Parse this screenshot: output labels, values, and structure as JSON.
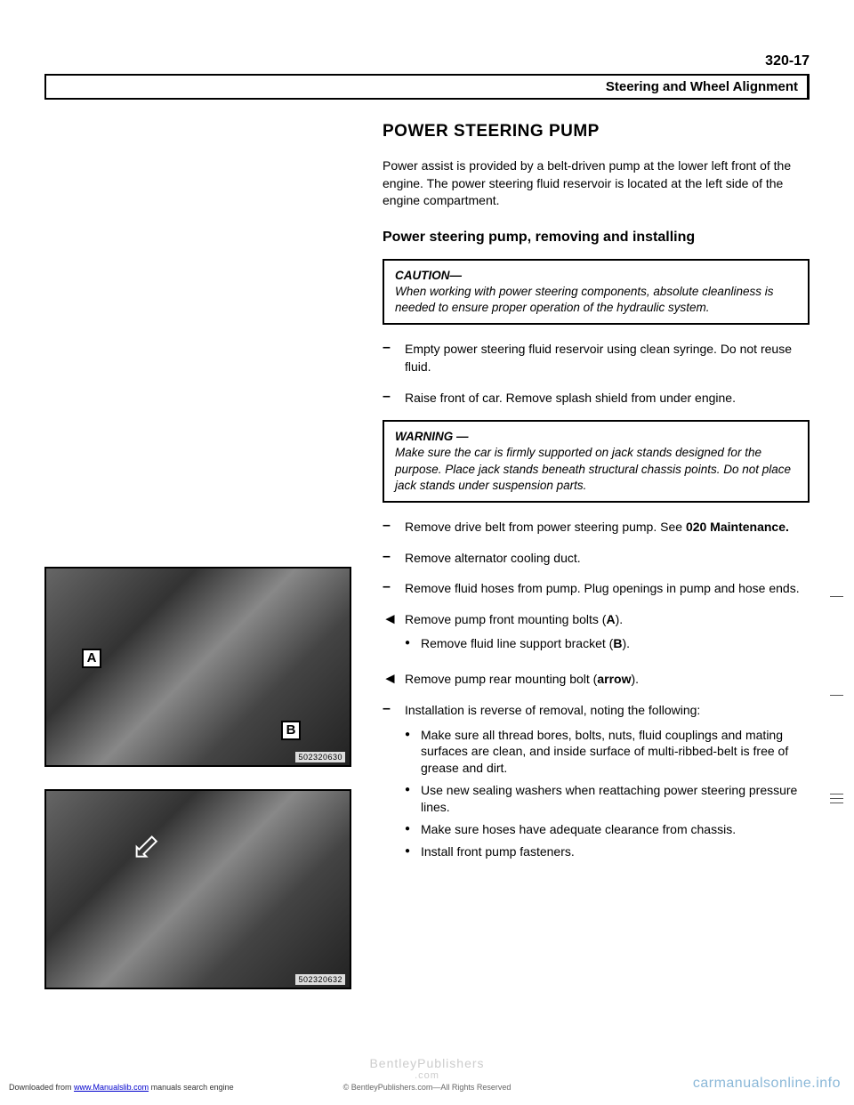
{
  "page_number": "320-17",
  "header_title": "Steering and Wheel Alignment",
  "section_title": "POWER STEERING PUMP",
  "intro_text": "Power assist is provided by a belt-driven pump at the lower left front of the engine. The power steering fluid reservoir is located at the left side of the engine compartment.",
  "subsection_title": "Power steering pump, removing and installing",
  "caution_box": {
    "title": "CAUTION—",
    "body": "When working with power steering components, absolute cleanliness is needed to ensure proper operation of the hydraulic system."
  },
  "warning_box": {
    "title": "WARNING —",
    "body": "Make sure the car is firmly supported on jack stands designed for the purpose. Place jack stands beneath structural chassis points. Do not place jack stands under suspension parts."
  },
  "steps": [
    {
      "marker": "–",
      "type": "dash",
      "text": "Empty power steering fluid reservoir using clean syringe. Do not reuse fluid."
    },
    {
      "marker": "–",
      "type": "dash",
      "text": "Raise front of car. Remove splash shield from under engine."
    },
    {
      "marker": "–",
      "type": "dash",
      "text_pre": "Remove drive belt from power steering pump. See ",
      "bold": "020 Maintenance.",
      "text_post": ""
    },
    {
      "marker": "–",
      "type": "dash",
      "text": "Remove alternator cooling duct."
    },
    {
      "marker": "–",
      "type": "dash",
      "text": "Remove fluid hoses from pump. Plug openings in pump and hose ends."
    },
    {
      "marker": "◄",
      "type": "arrow",
      "text_pre": "Remove pump front mounting bolts (",
      "bold": "A",
      "text_post": ").",
      "sub": [
        {
          "text_pre": "Remove fluid line support bracket (",
          "bold": "B",
          "text_post": ")."
        }
      ]
    },
    {
      "marker": "◄",
      "type": "arrow",
      "text_pre": "Remove pump rear mounting bolt (",
      "bold": "arrow",
      "text_post": ")."
    },
    {
      "marker": "–",
      "type": "dash",
      "text": "Installation is reverse of removal, noting the following:",
      "sub": [
        {
          "text": "Make sure all thread bores, bolts, nuts, fluid couplings and mating surfaces are clean, and inside surface of multi-ribbed-belt is free of grease and dirt."
        },
        {
          "text": "Use new sealing washers when reattaching power steering pressure lines."
        },
        {
          "text": "Make sure hoses have adequate clearance from chassis."
        },
        {
          "text": "Install front pump fasteners."
        }
      ]
    }
  ],
  "figures": {
    "fig1": {
      "label_a": "A",
      "label_b": "B",
      "id": "502320630"
    },
    "fig2": {
      "id": "502320632",
      "arrow": "⇩"
    }
  },
  "footer": {
    "watermark": "BentleyPublishers",
    "watermark_sub": ".com",
    "copyright": "© BentleyPublishers.com—All Rights Reserved",
    "left_pre": "Downloaded from ",
    "left_link": "www.Manualslib.com",
    "left_post": " manuals search engine",
    "right": "carmanualsonline.info"
  }
}
